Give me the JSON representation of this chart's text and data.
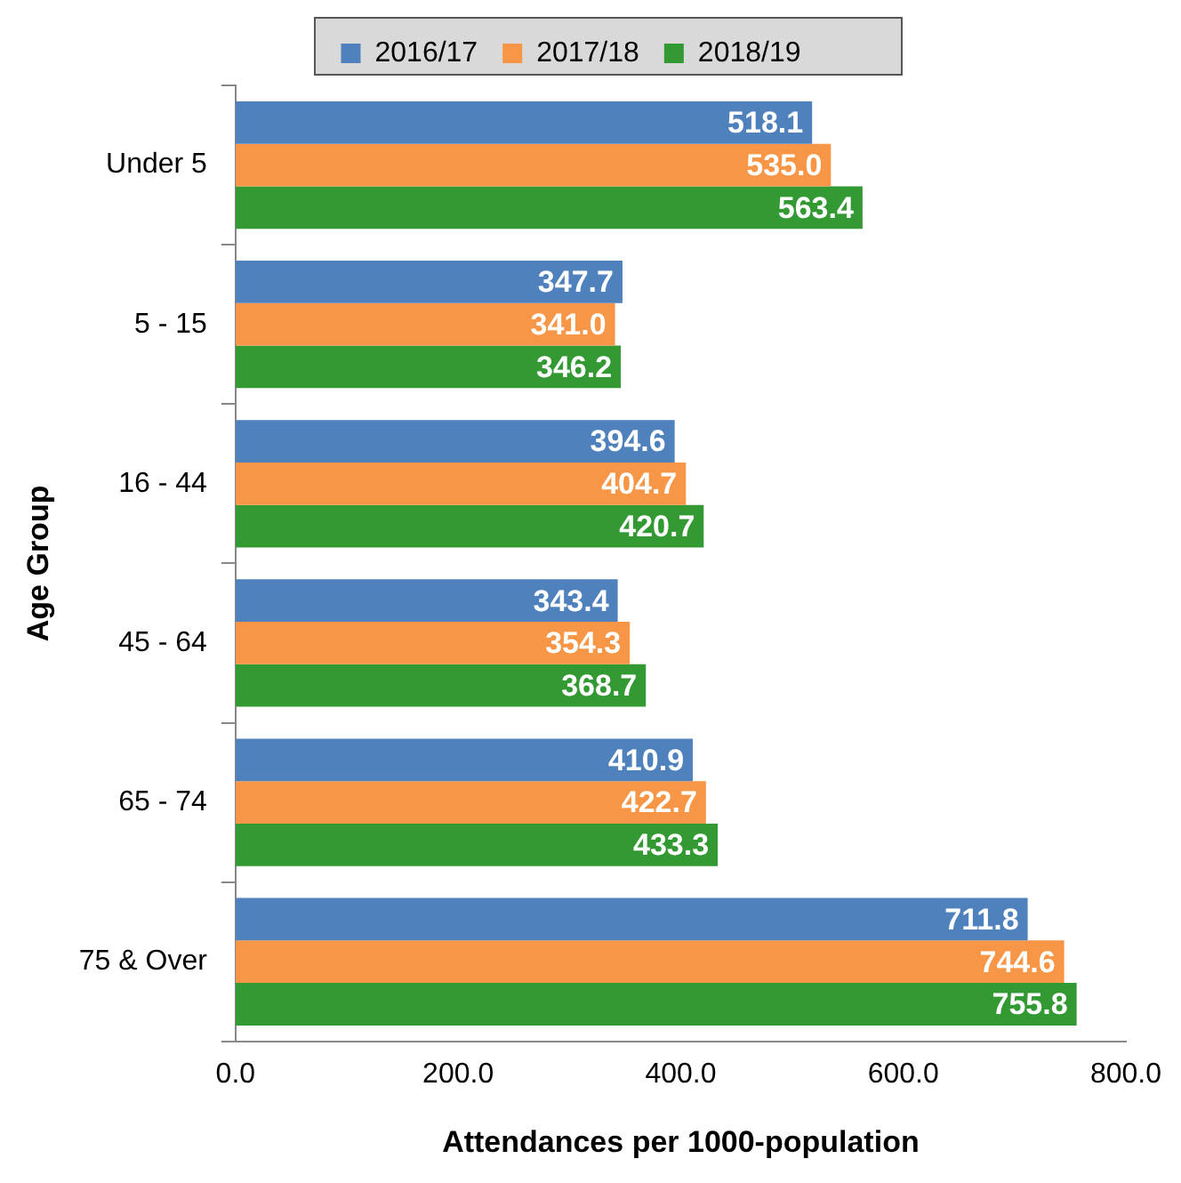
{
  "chart_data": {
    "type": "bar",
    "orientation": "horizontal",
    "xlabel": "Attendances per 1000-population",
    "ylabel": "Age Group",
    "categories": [
      "Under 5",
      "5 - 15",
      "16 - 44",
      "45 - 64",
      "65 - 74",
      "75 & Over"
    ],
    "series": [
      {
        "name": "2016/17",
        "color": "#4f81bd",
        "values": [
          518.1,
          347.7,
          394.6,
          343.4,
          410.9,
          711.8
        ],
        "value_labels": [
          "518.1",
          "347.7",
          "394.6",
          "343.4",
          "410.9",
          "711.8"
        ]
      },
      {
        "name": "2017/18",
        "color": "#f79646",
        "values": [
          535.0,
          341.0,
          404.7,
          354.3,
          422.7,
          744.6
        ],
        "value_labels": [
          "535.0",
          "341.0",
          "404.7",
          "354.3",
          "422.7",
          "744.6"
        ]
      },
      {
        "name": "2018/19",
        "color": "#339933",
        "values": [
          563.4,
          346.2,
          420.7,
          368.7,
          433.3,
          755.8
        ],
        "value_labels": [
          "563.4",
          "346.2",
          "420.7",
          "368.7",
          "433.3",
          "755.8"
        ]
      }
    ],
    "xlim": [
      0,
      800
    ],
    "xticks": [
      {
        "value": 0,
        "label": "0.0"
      },
      {
        "value": 200,
        "label": "200.0"
      },
      {
        "value": 400,
        "label": "400.0"
      },
      {
        "value": 600,
        "label": "600.0"
      },
      {
        "value": 800,
        "label": "800.0"
      }
    ],
    "grid": false,
    "legend": "top"
  }
}
